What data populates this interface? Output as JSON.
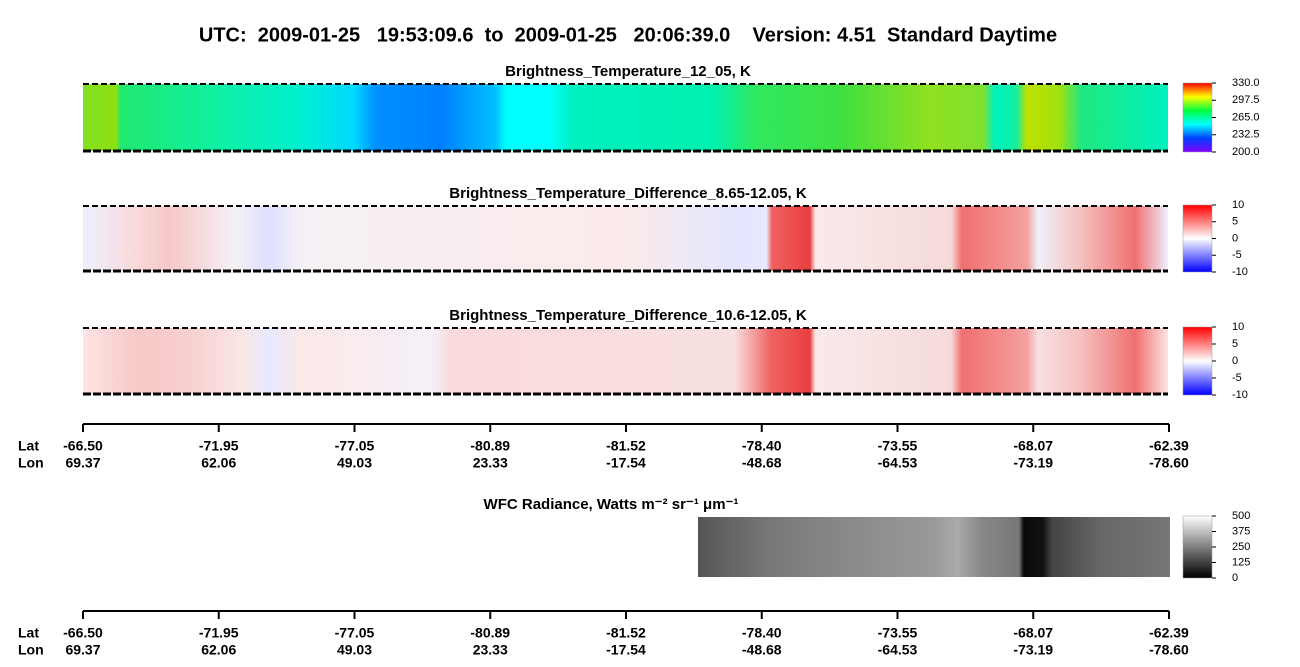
{
  "title": "UTC:  2009-01-25   19:53:09.6  to  2009-01-25   20:06:39.0    Version: 4.51  Standard Daytime",
  "chart_data": [
    {
      "type": "heatmap",
      "title": "Brightness_Temperature_12_05, K",
      "zlim": [
        200,
        330
      ],
      "zticks": [
        {
          "value": 200,
          "label": "200.0"
        },
        {
          "value": 232.5,
          "label": "232.5"
        },
        {
          "value": 265,
          "label": "265.0"
        },
        {
          "value": 297.5,
          "label": "297.5"
        },
        {
          "value": 330,
          "label": "330.0"
        }
      ],
      "colors": [
        "#8000ff",
        "#0040ff",
        "#00ffff",
        "#00ff40",
        "#ffff00",
        "#ff0000"
      ]
    },
    {
      "type": "heatmap",
      "title": "Brightness_Temperature_Difference_8.65-12.05, K",
      "zlim": [
        -10,
        10
      ],
      "zticks": [
        -10,
        -5,
        0,
        5,
        10
      ],
      "colors": [
        "#0000ff",
        "#ffffff",
        "#ff0000"
      ]
    },
    {
      "type": "heatmap",
      "title": "Brightness_Temperature_Difference_10.6-12.05, K",
      "zlim": [
        -10,
        10
      ],
      "zticks": [
        -10,
        -5,
        0,
        5,
        10
      ],
      "colors": [
        "#0000ff",
        "#ffffff",
        "#ff0000"
      ]
    },
    {
      "type": "heatmap",
      "title": "WFC Radiance, Watts m⁻² sr⁻¹ μm⁻¹",
      "zlim": [
        0,
        500
      ],
      "zticks": [
        0,
        125,
        250,
        375,
        500
      ],
      "colors": [
        "#000000",
        "#ffffff"
      ]
    }
  ],
  "axes": [
    {
      "lat_label": "Lat",
      "lon_label": "Lon",
      "lat": [
        "-66.50",
        "-71.95",
        "-77.05",
        "-80.89",
        "-81.52",
        "-78.40",
        "-73.55",
        "-68.07",
        "-62.39"
      ],
      "lon": [
        "69.37",
        "62.06",
        "49.03",
        "23.33",
        "-17.54",
        "-48.68",
        "-64.53",
        "-73.19",
        "-78.60"
      ]
    },
    {
      "lat_label": "Lat",
      "lon_label": "Lon",
      "lat": [
        "-66.50",
        "-71.95",
        "-77.05",
        "-80.89",
        "-81.52",
        "-78.40",
        "-73.55",
        "-68.07",
        "-62.39"
      ],
      "lon": [
        "69.37",
        "62.06",
        "49.03",
        "23.33",
        "-17.54",
        "-48.68",
        "-64.53",
        "-73.19",
        "-78.60"
      ]
    }
  ]
}
